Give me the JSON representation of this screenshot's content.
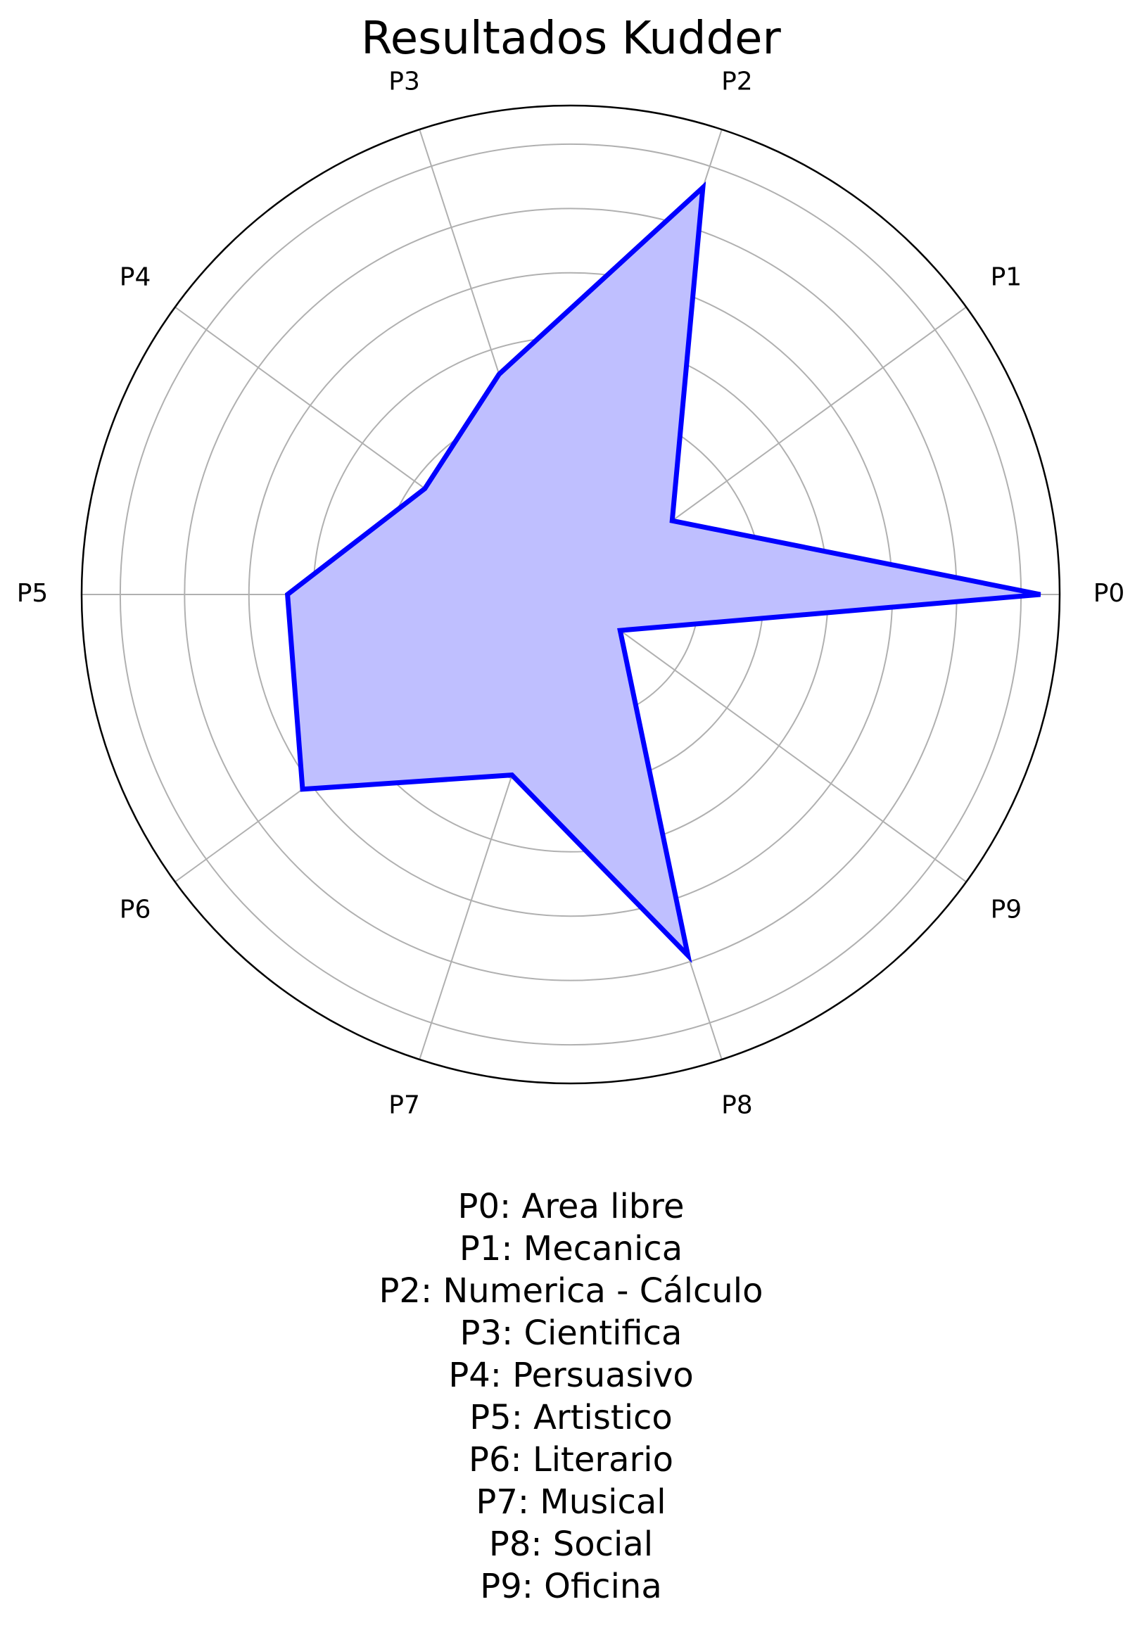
{
  "chart_data": {
    "type": "radar",
    "title": "Resultados Kudder",
    "categories": [
      "P0",
      "P1",
      "P2",
      "P3",
      "P4",
      "P5",
      "P6",
      "P7",
      "P8",
      "P9"
    ],
    "series": [
      {
        "values": [
          7.3,
          1.95,
          6.65,
          3.6,
          2.8,
          4.4,
          5.15,
          2.95,
          5.9,
          0.95
        ]
      }
    ],
    "rlim": [
      0,
      7.6
    ],
    "rticks": [
      1,
      2,
      3,
      4,
      5,
      6,
      7
    ],
    "grid": true,
    "colors": {
      "line": "#0000ff",
      "fill": "#bfbfff",
      "grid": "#b0b0b0",
      "frame": "#000000"
    },
    "legend_text": [
      "P0: Area libre",
      "P1: Mecanica",
      "P2: Numerica - Cálculo",
      "P3: Cientifica",
      "P4: Persuasivo",
      "P5: Artistico",
      "P6: Literario",
      "P7: Musical",
      "P8: Social",
      "P9: Oficina"
    ]
  }
}
